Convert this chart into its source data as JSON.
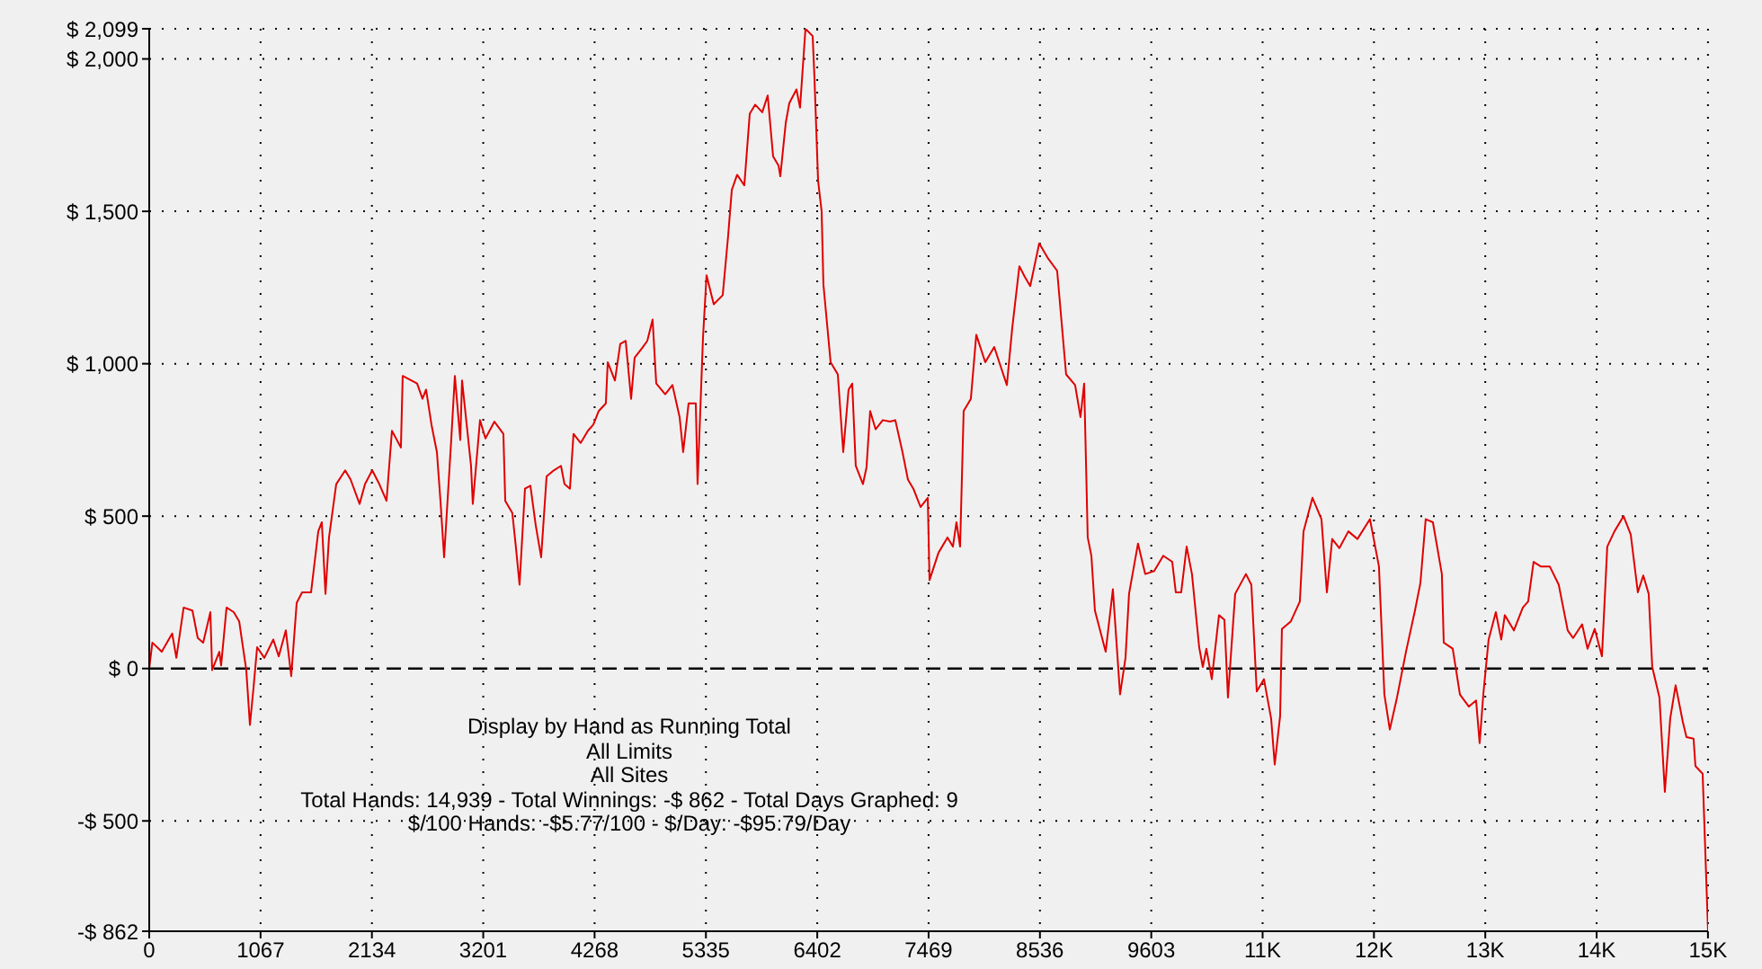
{
  "chart_data": {
    "type": "line",
    "annotations": [
      "Display by Hand as Running Total",
      "All Limits",
      "All Sites",
      "Total Hands: 14,939 - Total Winnings: -$ 862 - Total Days Graphed: 9",
      "$/100 Hands: -$5.77/100 - $/Day: -$95.79/Day"
    ],
    "xlim": [
      0,
      14939
    ],
    "xticks": [
      0,
      1067,
      2134,
      3201,
      4268,
      5335,
      6402,
      7469,
      8536,
      9603,
      {
        "value": 10670,
        "label": "11K"
      },
      {
        "value": 11737,
        "label": "12K"
      },
      {
        "value": 12804,
        "label": "13K"
      },
      {
        "value": 13871,
        "label": "14K"
      },
      {
        "value": 14938,
        "label": "15K"
      }
    ],
    "ylim": [
      -862,
      2099
    ],
    "yticks": [
      {
        "value": -862,
        "label": "-$ 862"
      },
      {
        "value": -500,
        "label": "-$ 500"
      },
      {
        "value": 0,
        "label": "$ 0"
      },
      {
        "value": 500,
        "label": "$ 500"
      },
      {
        "value": 1000,
        "label": "$ 1,000"
      },
      {
        "value": 1500,
        "label": "$ 1,500"
      },
      {
        "value": 2000,
        "label": "$ 2,000"
      },
      {
        "value": 2099,
        "label": "$ 2,099"
      }
    ],
    "grid": true,
    "ref_lines": [
      {
        "axis": "y",
        "value": 0,
        "color": "#000000",
        "line_style": "dashed"
      }
    ],
    "series": [
      {
        "color": "#e00000",
        "line_style": "solid",
        "x": [
          0,
          30,
          120,
          220,
          260,
          330,
          414,
          465,
          517,
          586,
          603,
          672,
          689,
          741,
          810,
          862,
          930,
          965,
          999,
          1034,
          1103,
          1189,
          1241,
          1309,
          1361,
          1413,
          1465,
          1551,
          1620,
          1654,
          1689,
          1723,
          1792,
          1878,
          1930,
          2016,
          2068,
          2137,
          2205,
          2274,
          2326,
          2412,
          2429,
          2567,
          2619,
          2653,
          2705,
          2757,
          2791,
          2826,
          2895,
          2929,
          2981,
          2998,
          3084,
          3101,
          3170,
          3222,
          3308,
          3394,
          3412,
          3480,
          3515,
          3549,
          3601,
          3653,
          3704,
          3756,
          3808,
          3877,
          3946,
          3980,
          4032,
          4066,
          4135,
          4204,
          4256,
          4308,
          4376,
          4394,
          4463,
          4514,
          4566,
          4618,
          4652,
          4721,
          4773,
          4824,
          4859,
          4945,
          5014,
          5083,
          5117,
          5169,
          5238,
          5255,
          5307,
          5341,
          5410,
          5496,
          5548,
          5583,
          5634,
          5703,
          5755,
          5807,
          5875,
          5927,
          5979,
          6031,
          6048,
          6100,
          6134,
          6203,
          6237,
          6289,
          6358,
          6375,
          6410,
          6444,
          6461,
          6530,
          6599,
          6651,
          6702,
          6737,
          6771,
          6840,
          6874,
          6909,
          6961,
          7030,
          7099,
          7150,
          7219,
          7271,
          7323,
          7392,
          7461,
          7478,
          7564,
          7650,
          7702,
          7736,
          7771,
          7805,
          7874,
          7926,
          8012,
          8098,
          8219,
          8270,
          8339,
          8391,
          8443,
          8529,
          8615,
          8701,
          8787,
          8873,
          8925,
          8960,
          8994,
          9029,
          9063,
          9166,
          9235,
          9304,
          9356,
          9390,
          9476,
          9545,
          9631,
          9718,
          9804,
          9838,
          9890,
          9942,
          9993,
          10062,
          10097,
          10131,
          10183,
          10252,
          10304,
          10338,
          10407,
          10510,
          10562,
          10614,
          10683,
          10752,
          10786,
          10838,
          10855,
          10941,
          11027,
          11062,
          11148,
          11234,
          11286,
          11337,
          11406,
          11492,
          11579,
          11699,
          11785,
          11837,
          11889,
          11958,
          12044,
          12130,
          12182,
          12233,
          12302,
          12388,
          12406,
          12492,
          12561,
          12647,
          12716,
          12750,
          12785,
          12836,
          12905,
          12957,
          12991,
          13078,
          13164,
          13215,
          13267,
          13336,
          13422,
          13508,
          13594,
          13646,
          13732,
          13784,
          13853,
          13922,
          13973,
          14042,
          14129,
          14198,
          14266,
          14318,
          14370,
          14404,
          14473,
          14525,
          14576,
          14628,
          14697,
          14732,
          14800,
          14818,
          14887,
          14939
        ],
        "values": [
          0,
          85,
          55,
          115,
          35,
          200,
          190,
          100,
          85,
          185,
          -5,
          55,
          10,
          200,
          185,
          155,
          -5,
          -185,
          -65,
          70,
          35,
          95,
          40,
          125,
          -25,
          215,
          250,
          250,
          450,
          480,
          245,
          430,
          605,
          650,
          620,
          540,
          605,
          650,
          605,
          550,
          780,
          725,
          960,
          935,
          885,
          915,
          800,
          710,
          550,
          365,
          755,
          960,
          750,
          945,
          665,
          540,
          815,
          755,
          810,
          770,
          550,
          510,
          395,
          275,
          590,
          600,
          470,
          365,
          630,
          650,
          665,
          605,
          590,
          770,
          740,
          780,
          800,
          845,
          870,
          1005,
          945,
          1065,
          1075,
          885,
          1020,
          1050,
          1075,
          1145,
          935,
          900,
          930,
          825,
          710,
          870,
          870,
          605,
          1085,
          1290,
          1195,
          1225,
          1420,
          1570,
          1620,
          1585,
          1820,
          1850,
          1825,
          1880,
          1680,
          1650,
          1615,
          1790,
          1855,
          1900,
          1840,
          2099,
          2075,
          1940,
          1600,
          1500,
          1260,
          1005,
          965,
          710,
          915,
          935,
          665,
          605,
          660,
          845,
          785,
          815,
          810,
          815,
          710,
          620,
          590,
          530,
          560,
          290,
          380,
          430,
          400,
          480,
          400,
          845,
          885,
          1095,
          1005,
          1055,
          930,
          1115,
          1320,
          1285,
          1255,
          1395,
          1345,
          1305,
          965,
          930,
          825,
          935,
          430,
          370,
          190,
          55,
          260,
          -85,
          35,
          245,
          410,
          310,
          320,
          370,
          350,
          250,
          250,
          400,
          310,
          70,
          5,
          65,
          -35,
          175,
          160,
          -95,
          245,
          310,
          275,
          -75,
          -35,
          -165,
          -315,
          -155,
          130,
          155,
          220,
          450,
          560,
          490,
          250,
          425,
          395,
          450,
          425,
          490,
          335,
          -85,
          -200,
          -95,
          55,
          190,
          280,
          490,
          480,
          310,
          85,
          65,
          -85,
          -125,
          -105,
          -245,
          -85,
          95,
          185,
          95,
          175,
          125,
          200,
          220,
          350,
          335,
          335,
          275,
          125,
          100,
          145,
          65,
          130,
          40,
          400,
          450,
          500,
          440,
          250,
          305,
          245,
          5,
          -95,
          -405,
          -165,
          -55,
          -175,
          -225,
          -230,
          -320,
          -345,
          -862
        ]
      }
    ]
  }
}
